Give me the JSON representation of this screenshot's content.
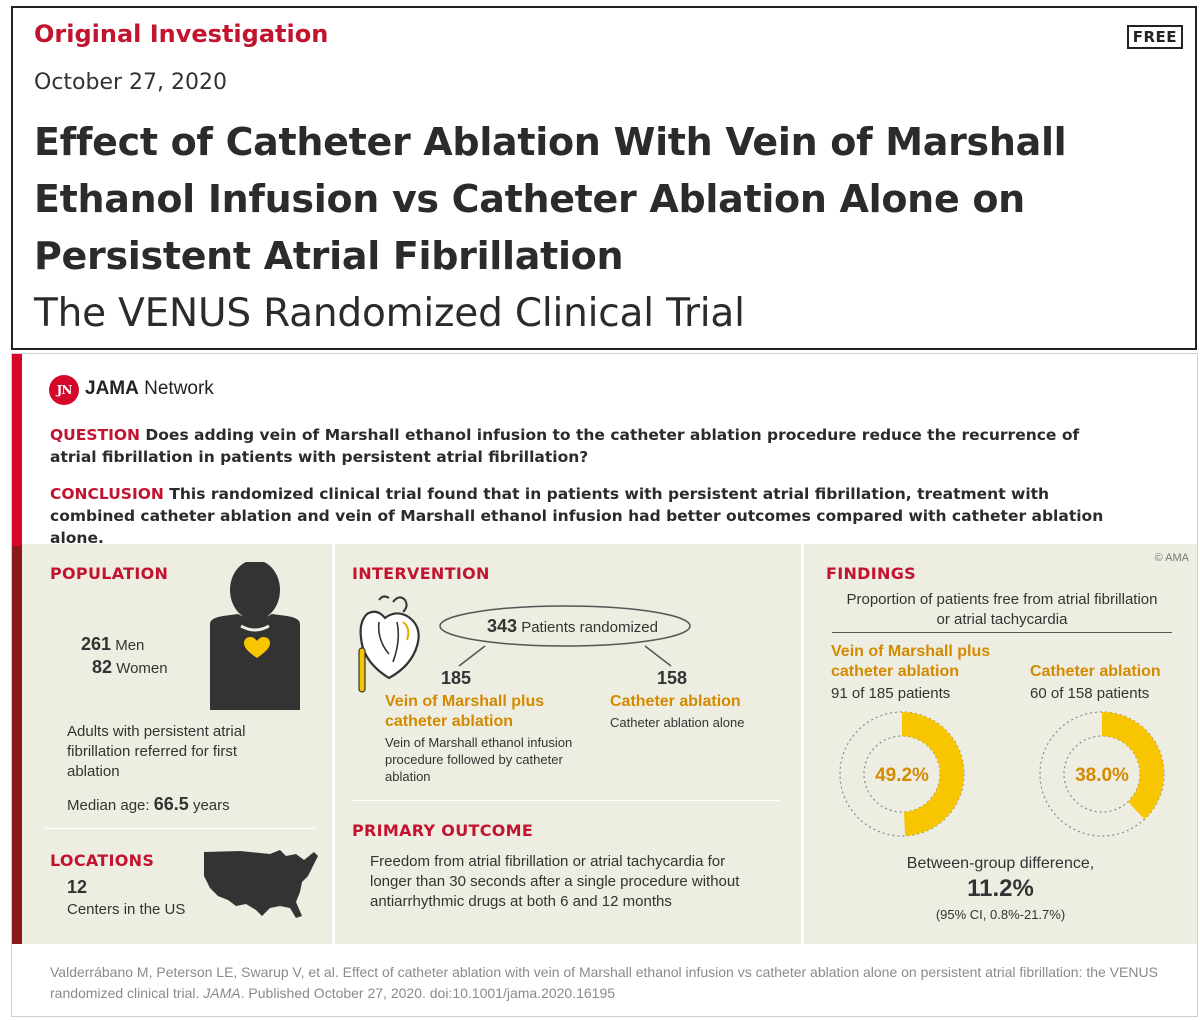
{
  "header": {
    "article_type": "Original Investigation",
    "badge": "FREE",
    "date": "October 27, 2020",
    "title": "Effect of Catheter Ablation With Vein of Marshall Ethanol Infusion vs Catheter Ablation Alone on Persistent Atrial Fibrillation",
    "subtitle": "The VENUS Randomized Clinical Trial"
  },
  "abstract": {
    "logo_mark": "JN",
    "network_bold": "JAMA",
    "network_rest": " Network",
    "question_label": "QUESTION",
    "question_text": " Does adding vein of Marshall ethanol infusion to the catheter ablation procedure reduce the recurrence of atrial fibrillation in patients with persistent atrial fibrillation?",
    "conclusion_label": "CONCLUSION",
    "conclusion_text": " This randomized clinical trial found that in patients with persistent atrial fibrillation, treatment with combined catheter ablation and vein of Marshall ethanol infusion had better outcomes compared with catheter ablation alone.",
    "copyright": "© AMA",
    "population": {
      "title": "POPULATION",
      "men_count": "261",
      "men_label": " Men",
      "women_count": "82",
      "women_label": " Women",
      "description": "Adults with persistent atrial fibrillation referred for first ablation",
      "median_label": "Median age: ",
      "median_value": "66.5",
      "median_unit": " years"
    },
    "locations": {
      "title": "LOCATIONS",
      "count": "12",
      "label": "Centers in the US"
    },
    "intervention": {
      "title": "INTERVENTION",
      "randomized_count": "343",
      "randomized_label": " Patients randomized",
      "arm1_n": "185",
      "arm1_name": "Vein of Marshall plus catheter ablation",
      "arm1_desc": "Vein of Marshall ethanol infusion procedure followed by catheter ablation",
      "arm2_n": "158",
      "arm2_name": "Catheter ablation",
      "arm2_desc": "Catheter ablation alone"
    },
    "primary_outcome": {
      "title": "PRIMARY OUTCOME",
      "text": "Freedom from atrial fibrillation or atrial tachycardia for longer than 30 seconds after a single procedure without antiarrhythmic drugs at both 6 and 12 months"
    },
    "findings": {
      "title": "FINDINGS",
      "caption": "Proportion of patients free from atrial fibrillation or atrial tachycardia",
      "group1_name": "Vein of Marshall plus catheter ablation",
      "group1_count": "91 of 185 patients",
      "group1_pct_label": "49.2%",
      "group1_fraction": 0.492,
      "group2_name": "Catheter ablation",
      "group2_count": "60 of 158 patients",
      "group2_pct_label": "38.0%",
      "group2_fraction": 0.38,
      "diff_label": "Between-group difference,",
      "diff_value": "11.2%",
      "diff_ci": "(95% CI, 0.8%-21.7%)"
    },
    "citation_part1": "Valderrábano M, Peterson LE, Swarup V, et al. Effect of catheter ablation with vein of Marshall ethanol infusion vs catheter ablation alone on persistent atrial fibrillation: the VENUS randomized clinical trial. ",
    "citation_journal": "JAMA",
    "citation_part2": ". Published October 27, 2020. doi:10.1001/jama.2020.16195"
  },
  "colors": {
    "accent_red": "#c2132f",
    "gold": "#d38a00",
    "donut_yellow": "#f7c600",
    "panel_bg": "#eeede2"
  },
  "icons": [
    "person-icon",
    "heart-icon",
    "us-map-icon",
    "heart-anatomy-icon"
  ]
}
